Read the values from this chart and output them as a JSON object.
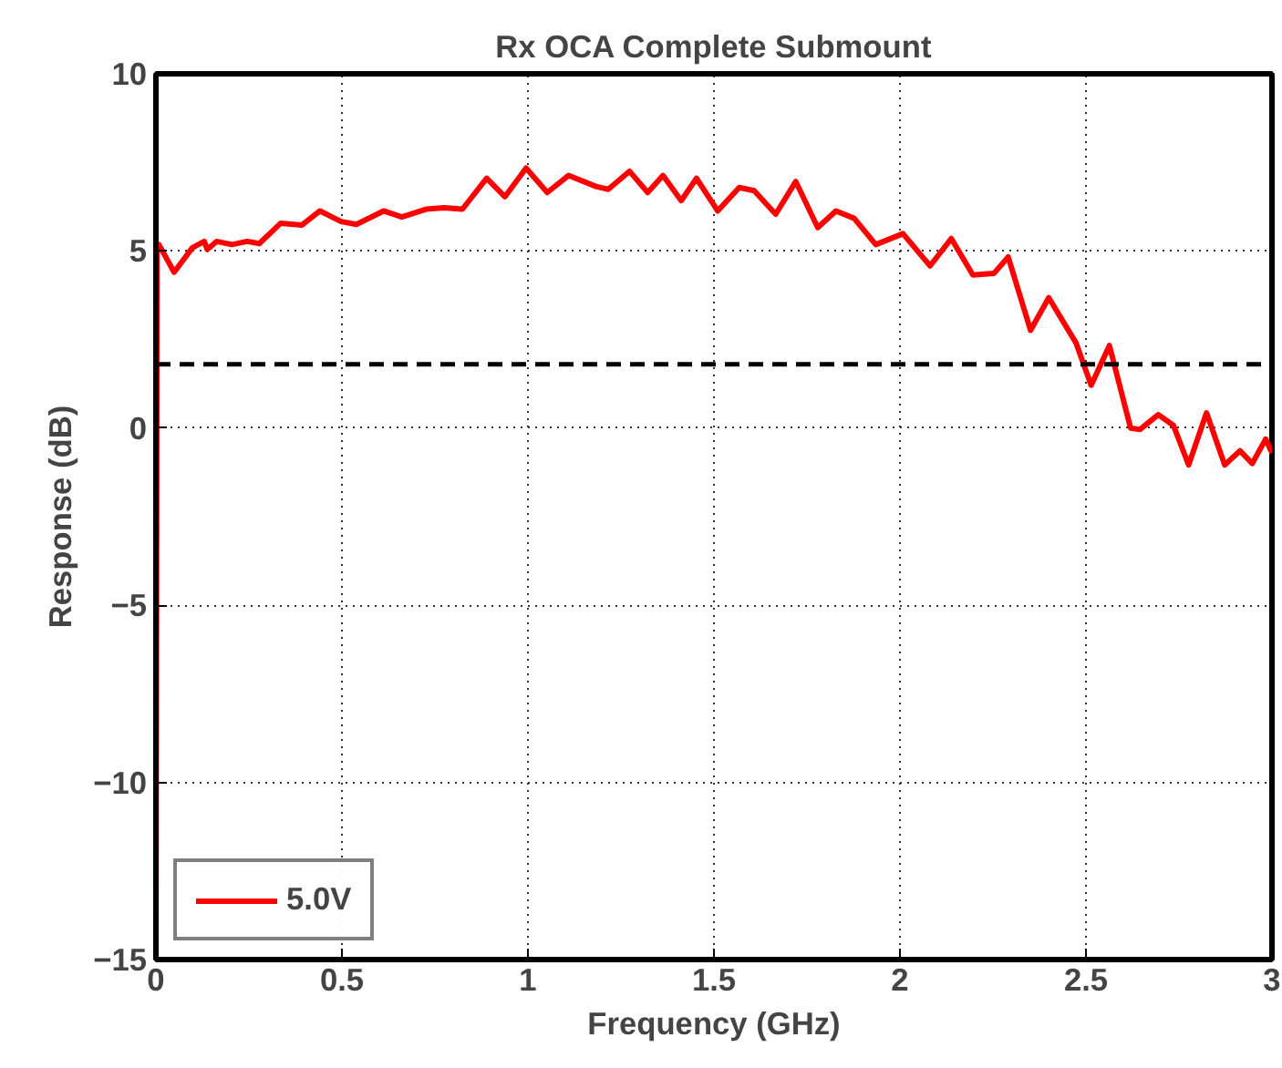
{
  "chart_data": {
    "type": "line",
    "title": "Rx OCA Complete Submount",
    "xlabel": "Frequency (GHz)",
    "ylabel": "Response (dB)",
    "xlim": [
      0,
      3
    ],
    "ylim": [
      -15,
      10
    ],
    "xticks": [
      0,
      0.5,
      1,
      1.5,
      2,
      2.5,
      3
    ],
    "yticks": [
      -15,
      -10,
      -5,
      0,
      5,
      10
    ],
    "grid": true,
    "legend": "bottom left",
    "line_style": "solid",
    "marker": "none",
    "ref_lines": [
      {
        "axis": "y",
        "value": 1.8,
        "color": "#000000",
        "line_style": "dashed"
      }
    ],
    "series": [
      {
        "name": "5.0V",
        "color": "#ff0000",
        "x": [
          0,
          0.003,
          0.008,
          0.049,
          0.098,
          0.13,
          0.138,
          0.163,
          0.204,
          0.245,
          0.278,
          0.335,
          0.392,
          0.441,
          0.498,
          0.539,
          0.612,
          0.661,
          0.726,
          0.775,
          0.824,
          0.889,
          0.938,
          0.995,
          1.052,
          1.109,
          1.183,
          1.216,
          1.273,
          1.322,
          1.363,
          1.412,
          1.453,
          1.51,
          1.568,
          1.608,
          1.666,
          1.72,
          1.779,
          1.828,
          1.877,
          1.935,
          2.008,
          2.081,
          2.138,
          2.196,
          2.253,
          2.291,
          2.351,
          2.4,
          2.473,
          2.514,
          2.563,
          2.62,
          2.645,
          2.694,
          2.735,
          2.776,
          2.824,
          2.873,
          2.914,
          2.947,
          2.983,
          3.0
        ],
        "values": [
          -15,
          5.0,
          5.18,
          4.4,
          5.09,
          5.27,
          5.04,
          5.27,
          5.18,
          5.27,
          5.21,
          5.78,
          5.73,
          6.13,
          5.83,
          5.75,
          6.13,
          5.96,
          6.18,
          6.22,
          6.18,
          7.05,
          6.53,
          7.34,
          6.65,
          7.13,
          6.82,
          6.74,
          7.25,
          6.65,
          7.13,
          6.42,
          7.05,
          6.13,
          6.79,
          6.7,
          6.04,
          6.96,
          5.66,
          6.13,
          5.92,
          5.18,
          5.49,
          4.58,
          5.35,
          4.32,
          4.37,
          4.83,
          2.76,
          3.68,
          2.41,
          1.21,
          2.33,
          0.0,
          -0.04,
          0.38,
          0.08,
          -1.04,
          0.43,
          -1.04,
          -0.64,
          -1.0,
          -0.31,
          -0.7
        ]
      }
    ]
  }
}
